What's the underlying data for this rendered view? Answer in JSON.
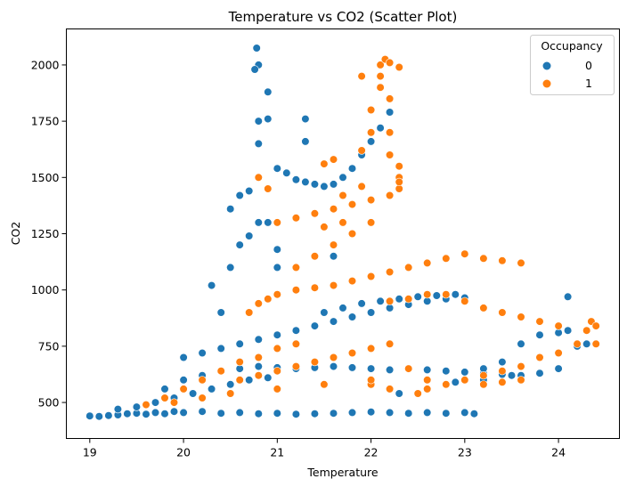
{
  "chart_data": {
    "type": "scatter",
    "title": "Temperature vs CO2 (Scatter Plot)",
    "xlabel": "Temperature",
    "ylabel": "CO2",
    "xlim": [
      18.75,
      24.65
    ],
    "ylim": [
      340,
      2160
    ],
    "xticks": [
      19,
      20,
      21,
      22,
      23,
      24
    ],
    "yticks": [
      500,
      750,
      1000,
      1250,
      1500,
      1750,
      2000
    ],
    "grid": false,
    "legend": {
      "title": "Occupancy",
      "placement": "top-right",
      "entries": [
        {
          "label": "0",
          "color": "#1f77b4"
        },
        {
          "label": "1",
          "color": "#ff7f0e"
        }
      ]
    },
    "series": [
      {
        "name": "0",
        "color": "#1f77b4",
        "points": [
          [
            19.0,
            440
          ],
          [
            19.1,
            438
          ],
          [
            19.2,
            442
          ],
          [
            19.3,
            445
          ],
          [
            19.4,
            450
          ],
          [
            19.5,
            452
          ],
          [
            19.6,
            448
          ],
          [
            19.7,
            455
          ],
          [
            19.8,
            450
          ],
          [
            19.9,
            460
          ],
          [
            20.0,
            455
          ],
          [
            20.2,
            460
          ],
          [
            20.4,
            452
          ],
          [
            20.6,
            455
          ],
          [
            20.8,
            450
          ],
          [
            21.0,
            452
          ],
          [
            21.2,
            448
          ],
          [
            21.4,
            450
          ],
          [
            21.6,
            452
          ],
          [
            21.8,
            455
          ],
          [
            22.0,
            458
          ],
          [
            22.2,
            455
          ],
          [
            22.4,
            452
          ],
          [
            22.6,
            455
          ],
          [
            22.8,
            452
          ],
          [
            23.0,
            455
          ],
          [
            23.1,
            450
          ],
          [
            19.3,
            470
          ],
          [
            19.5,
            480
          ],
          [
            19.7,
            500
          ],
          [
            19.9,
            520
          ],
          [
            20.1,
            540
          ],
          [
            20.3,
            560
          ],
          [
            20.5,
            580
          ],
          [
            20.7,
            600
          ],
          [
            20.9,
            610
          ],
          [
            19.8,
            560
          ],
          [
            20.0,
            600
          ],
          [
            20.2,
            620
          ],
          [
            20.4,
            640
          ],
          [
            20.6,
            650
          ],
          [
            20.8,
            660
          ],
          [
            21.0,
            655
          ],
          [
            21.2,
            650
          ],
          [
            21.4,
            655
          ],
          [
            21.6,
            660
          ],
          [
            21.8,
            655
          ],
          [
            22.0,
            650
          ],
          [
            22.2,
            645
          ],
          [
            22.4,
            650
          ],
          [
            22.6,
            645
          ],
          [
            22.8,
            640
          ],
          [
            23.0,
            635
          ],
          [
            23.2,
            630
          ],
          [
            23.4,
            625
          ],
          [
            23.6,
            620
          ],
          [
            20.0,
            700
          ],
          [
            20.2,
            720
          ],
          [
            20.4,
            740
          ],
          [
            20.6,
            760
          ],
          [
            20.8,
            780
          ],
          [
            21.0,
            800
          ],
          [
            21.2,
            820
          ],
          [
            21.4,
            840
          ],
          [
            21.6,
            860
          ],
          [
            21.8,
            880
          ],
          [
            22.0,
            900
          ],
          [
            22.2,
            920
          ],
          [
            22.4,
            935
          ],
          [
            22.6,
            950
          ],
          [
            22.8,
            960
          ],
          [
            23.0,
            965
          ],
          [
            20.3,
            1020
          ],
          [
            20.4,
            900
          ],
          [
            20.5,
            1100
          ],
          [
            20.6,
            1200
          ],
          [
            20.7,
            1240
          ],
          [
            20.8,
            1300
          ],
          [
            20.8,
            1500
          ],
          [
            20.8,
            1650
          ],
          [
            20.8,
            1750
          ],
          [
            20.8,
            2000
          ],
          [
            20.78,
            2075
          ],
          [
            20.76,
            1980
          ],
          [
            20.9,
            1880
          ],
          [
            20.9,
            1760
          ],
          [
            21.0,
            1540
          ],
          [
            21.1,
            1520
          ],
          [
            21.2,
            1490
          ],
          [
            21.3,
            1480
          ],
          [
            21.4,
            1470
          ],
          [
            21.5,
            1460
          ],
          [
            21.6,
            1470
          ],
          [
            21.7,
            1500
          ],
          [
            21.8,
            1540
          ],
          [
            21.9,
            1600
          ],
          [
            22.0,
            1660
          ],
          [
            22.1,
            1720
          ],
          [
            22.2,
            1790
          ],
          [
            21.3,
            1760
          ],
          [
            21.3,
            1660
          ],
          [
            20.6,
            1420
          ],
          [
            20.5,
            1360
          ],
          [
            20.7,
            1440
          ],
          [
            20.9,
            1300
          ],
          [
            21.0,
            1180
          ],
          [
            21.0,
            1100
          ],
          [
            21.6,
            1200
          ],
          [
            21.6,
            1150
          ],
          [
            21.5,
            900
          ],
          [
            21.7,
            920
          ],
          [
            21.9,
            940
          ],
          [
            22.1,
            950
          ],
          [
            22.3,
            960
          ],
          [
            22.5,
            970
          ],
          [
            22.7,
            975
          ],
          [
            22.9,
            980
          ],
          [
            23.2,
            650
          ],
          [
            23.4,
            680
          ],
          [
            23.6,
            760
          ],
          [
            23.8,
            800
          ],
          [
            24.0,
            810
          ],
          [
            24.1,
            820
          ],
          [
            24.1,
            970
          ],
          [
            24.2,
            750
          ],
          [
            24.3,
            760
          ],
          [
            24.0,
            650
          ],
          [
            23.8,
            630
          ],
          [
            23.5,
            620
          ],
          [
            23.2,
            600
          ],
          [
            22.9,
            590
          ],
          [
            22.6,
            560
          ],
          [
            22.3,
            540
          ]
        ]
      },
      {
        "name": "1",
        "color": "#ff7f0e",
        "points": [
          [
            19.6,
            490
          ],
          [
            19.8,
            520
          ],
          [
            20.0,
            560
          ],
          [
            20.2,
            600
          ],
          [
            20.4,
            640
          ],
          [
            20.6,
            680
          ],
          [
            20.8,
            700
          ],
          [
            21.0,
            740
          ],
          [
            21.2,
            760
          ],
          [
            20.7,
            900
          ],
          [
            20.8,
            940
          ],
          [
            20.9,
            960
          ],
          [
            21.0,
            980
          ],
          [
            21.2,
            1000
          ],
          [
            21.4,
            1010
          ],
          [
            21.6,
            1020
          ],
          [
            21.8,
            1040
          ],
          [
            22.0,
            1060
          ],
          [
            22.2,
            1080
          ],
          [
            22.4,
            1100
          ],
          [
            22.6,
            1120
          ],
          [
            22.8,
            1140
          ],
          [
            23.0,
            1160
          ],
          [
            23.2,
            1140
          ],
          [
            23.4,
            1130
          ],
          [
            23.6,
            1120
          ],
          [
            22.2,
            950
          ],
          [
            22.4,
            960
          ],
          [
            22.6,
            980
          ],
          [
            22.8,
            980
          ],
          [
            23.0,
            950
          ],
          [
            23.2,
            920
          ],
          [
            23.4,
            900
          ],
          [
            23.6,
            880
          ],
          [
            23.8,
            860
          ],
          [
            24.0,
            840
          ],
          [
            20.8,
            1500
          ],
          [
            20.9,
            1450
          ],
          [
            21.0,
            1300
          ],
          [
            21.2,
            1320
          ],
          [
            21.4,
            1340
          ],
          [
            21.6,
            1360
          ],
          [
            21.8,
            1380
          ],
          [
            22.0,
            1400
          ],
          [
            22.2,
            1420
          ],
          [
            21.2,
            1100
          ],
          [
            21.4,
            1150
          ],
          [
            21.6,
            1200
          ],
          [
            21.8,
            1250
          ],
          [
            22.0,
            1300
          ],
          [
            21.9,
            1460
          ],
          [
            21.7,
            1420
          ],
          [
            21.5,
            1280
          ],
          [
            21.7,
            1300
          ],
          [
            22.3,
            1450
          ],
          [
            22.3,
            1500
          ],
          [
            22.3,
            1480
          ],
          [
            22.0,
            1700
          ],
          [
            22.0,
            1800
          ],
          [
            22.1,
            1900
          ],
          [
            22.1,
            1950
          ],
          [
            22.1,
            2000
          ],
          [
            22.15,
            2025
          ],
          [
            22.2,
            2010
          ],
          [
            22.3,
            1990
          ],
          [
            21.9,
            1950
          ],
          [
            22.2,
            1850
          ],
          [
            22.2,
            1700
          ],
          [
            22.2,
            1600
          ],
          [
            22.3,
            1550
          ],
          [
            21.9,
            1620
          ],
          [
            21.6,
            1580
          ],
          [
            21.5,
            1560
          ],
          [
            22.4,
            650
          ],
          [
            22.6,
            600
          ],
          [
            22.8,
            580
          ],
          [
            23.0,
            600
          ],
          [
            23.2,
            620
          ],
          [
            23.4,
            640
          ],
          [
            23.6,
            660
          ],
          [
            23.8,
            700
          ],
          [
            24.0,
            720
          ],
          [
            24.2,
            760
          ],
          [
            24.3,
            820
          ],
          [
            24.35,
            860
          ],
          [
            24.4,
            840
          ],
          [
            24.4,
            760
          ],
          [
            23.6,
            600
          ],
          [
            23.4,
            590
          ],
          [
            23.2,
            580
          ],
          [
            22.6,
            560
          ],
          [
            22.0,
            580
          ],
          [
            20.6,
            600
          ],
          [
            20.8,
            620
          ],
          [
            21.0,
            640
          ],
          [
            21.2,
            660
          ],
          [
            21.4,
            680
          ],
          [
            21.6,
            700
          ],
          [
            21.8,
            720
          ],
          [
            22.0,
            740
          ],
          [
            22.2,
            760
          ],
          [
            19.9,
            500
          ],
          [
            20.2,
            520
          ],
          [
            20.5,
            540
          ],
          [
            21.0,
            560
          ],
          [
            21.5,
            580
          ],
          [
            22.0,
            600
          ],
          [
            22.2,
            560
          ],
          [
            22.5,
            540
          ]
        ]
      }
    ]
  }
}
